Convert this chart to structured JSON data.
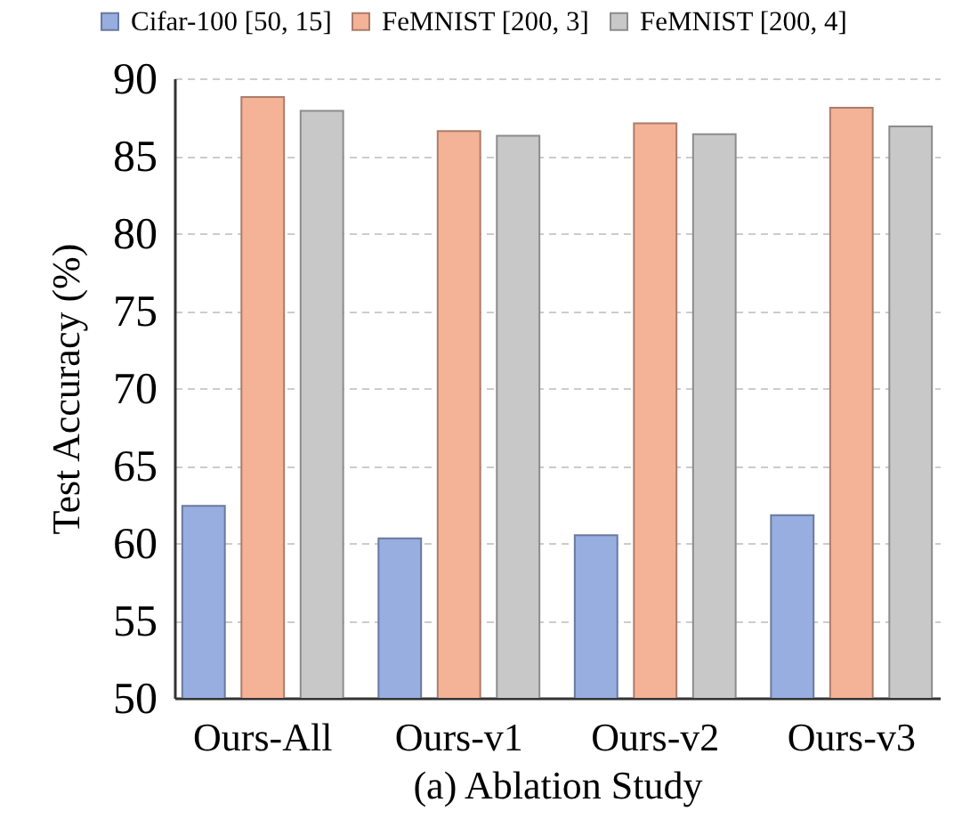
{
  "chart_data": {
    "type": "bar",
    "xlabel": "(a) Ablation Study",
    "ylabel": "Test Accuracy (%)",
    "categories": [
      "Ours-All",
      "Ours-v1",
      "Ours-v2",
      "Ours-v3"
    ],
    "series": [
      {
        "name": "Cifar-100 [50, 15]",
        "color": "#98aee0",
        "values": [
          62.4,
          60.3,
          60.5,
          61.8
        ]
      },
      {
        "name": "FeMNIST [200, 3]",
        "color": "#f4b297",
        "values": [
          88.8,
          86.6,
          87.1,
          88.1
        ]
      },
      {
        "name": "FeMNIST [200, 4]",
        "color": "#c8c8c8",
        "values": [
          87.9,
          86.3,
          86.4,
          86.9
        ]
      }
    ],
    "ylim": [
      50,
      90
    ],
    "yticks": [
      50,
      55,
      60,
      65,
      70,
      75,
      80,
      85,
      90
    ],
    "grid": "y",
    "legend": "top"
  }
}
